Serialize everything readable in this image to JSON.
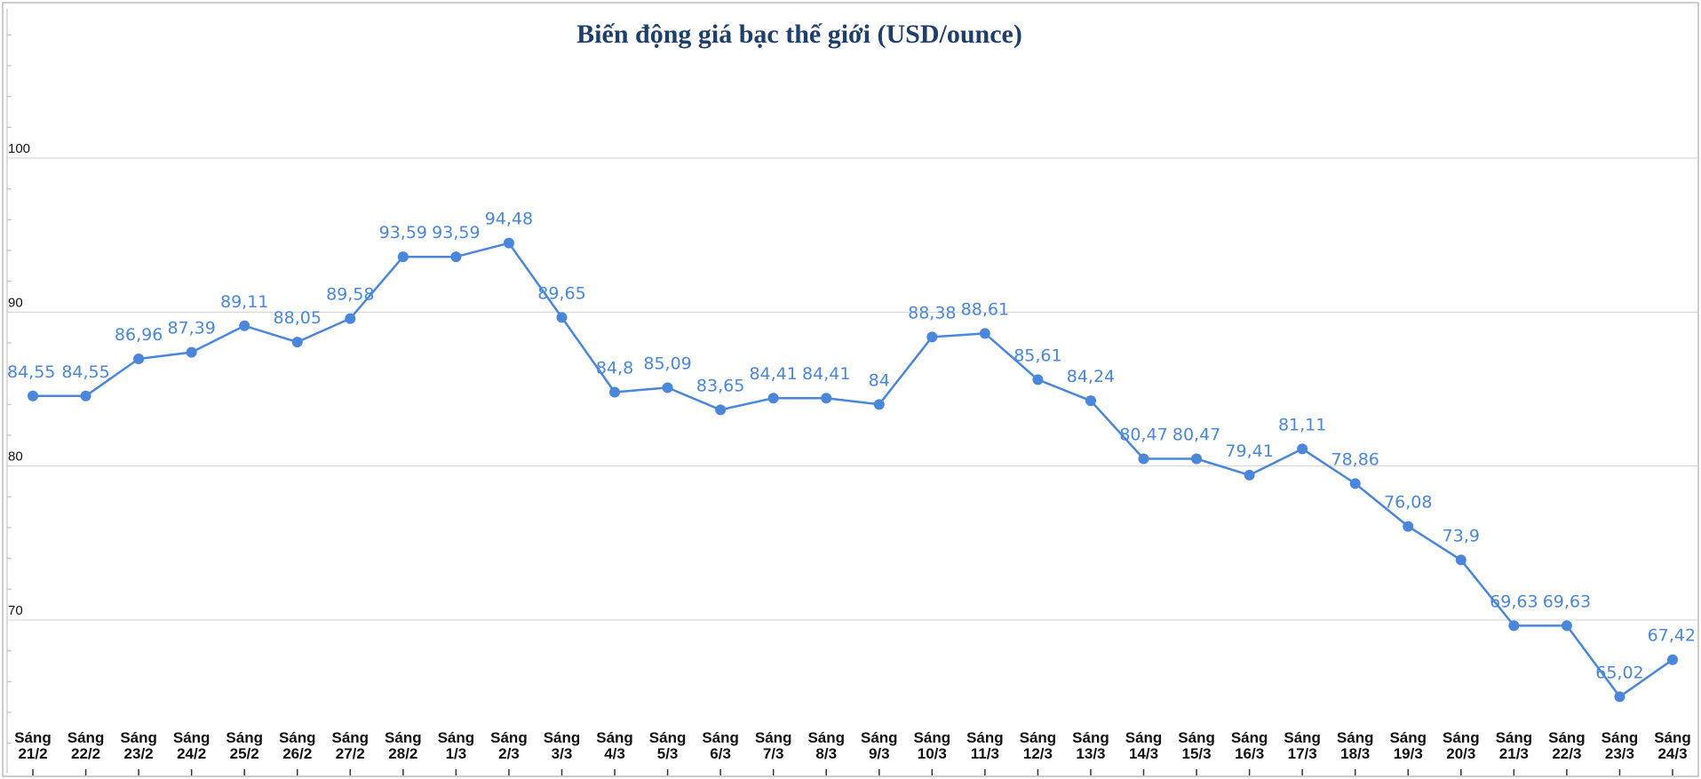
{
  "chart_data": {
    "type": "line",
    "title": "Biến động giá bạc thế giới (USD/ounce)",
    "xlabel": "",
    "ylabel": "",
    "ylim": [
      62,
      111
    ],
    "yticks": [
      70,
      80,
      90,
      100
    ],
    "grid": true,
    "legend": "none",
    "colors": {
      "line": "#4a86d9",
      "marker": "#4a86d9",
      "label": "#4a86d9",
      "title": "#1f3f6b",
      "grid": "#d0d0d0",
      "frame": "#9a9a9a"
    },
    "categories": [
      "Sáng 21/2",
      "Sáng 22/2",
      "Sáng 23/2",
      "Sáng 24/2",
      "Sáng 25/2",
      "Sáng 26/2",
      "Sáng 27/2",
      "Sáng 28/2",
      "Sáng 1/3",
      "Sáng 2/3",
      "Sáng 3/3",
      "Sáng 4/3",
      "Sáng 5/3",
      "Sáng 6/3",
      "Sáng 7/3",
      "Sáng 8/3",
      "Sáng 9/3",
      "Sáng 10/3",
      "Sáng 11/3",
      "Sáng 12/3",
      "Sáng 13/3",
      "Sáng 14/3",
      "Sáng 15/3",
      "Sáng 16/3",
      "Sáng 17/3",
      "Sáng 18/3",
      "Sáng 19/3",
      "Sáng 20/3",
      "Sáng 21/3",
      "Sáng 22/3",
      "Sáng 23/3",
      "Sáng 24/3"
    ],
    "values": [
      84.55,
      84.55,
      86.96,
      87.39,
      89.11,
      88.05,
      89.58,
      93.59,
      93.59,
      94.48,
      89.65,
      84.8,
      85.09,
      83.65,
      84.41,
      84.41,
      84,
      88.38,
      88.61,
      85.61,
      84.24,
      80.47,
      80.47,
      79.41,
      81.11,
      78.86,
      76.08,
      73.9,
      69.63,
      69.63,
      65.02,
      67.42
    ],
    "data_labels": [
      "84,55",
      "84,55",
      "86,96",
      "87,39",
      "89,11",
      "88,05",
      "89,58",
      "93,59",
      "93,59",
      "94,48",
      "89,65",
      "84,8",
      "85,09",
      "83,65",
      "84,41",
      "84,41",
      "84",
      "88,38",
      "88,61",
      "85,61",
      "84,24",
      "80,47",
      "80,47",
      "79,41",
      "81,11",
      "78,86",
      "76,08",
      "73,9",
      "69,63",
      "69,63",
      "65,02",
      "67,42"
    ]
  }
}
